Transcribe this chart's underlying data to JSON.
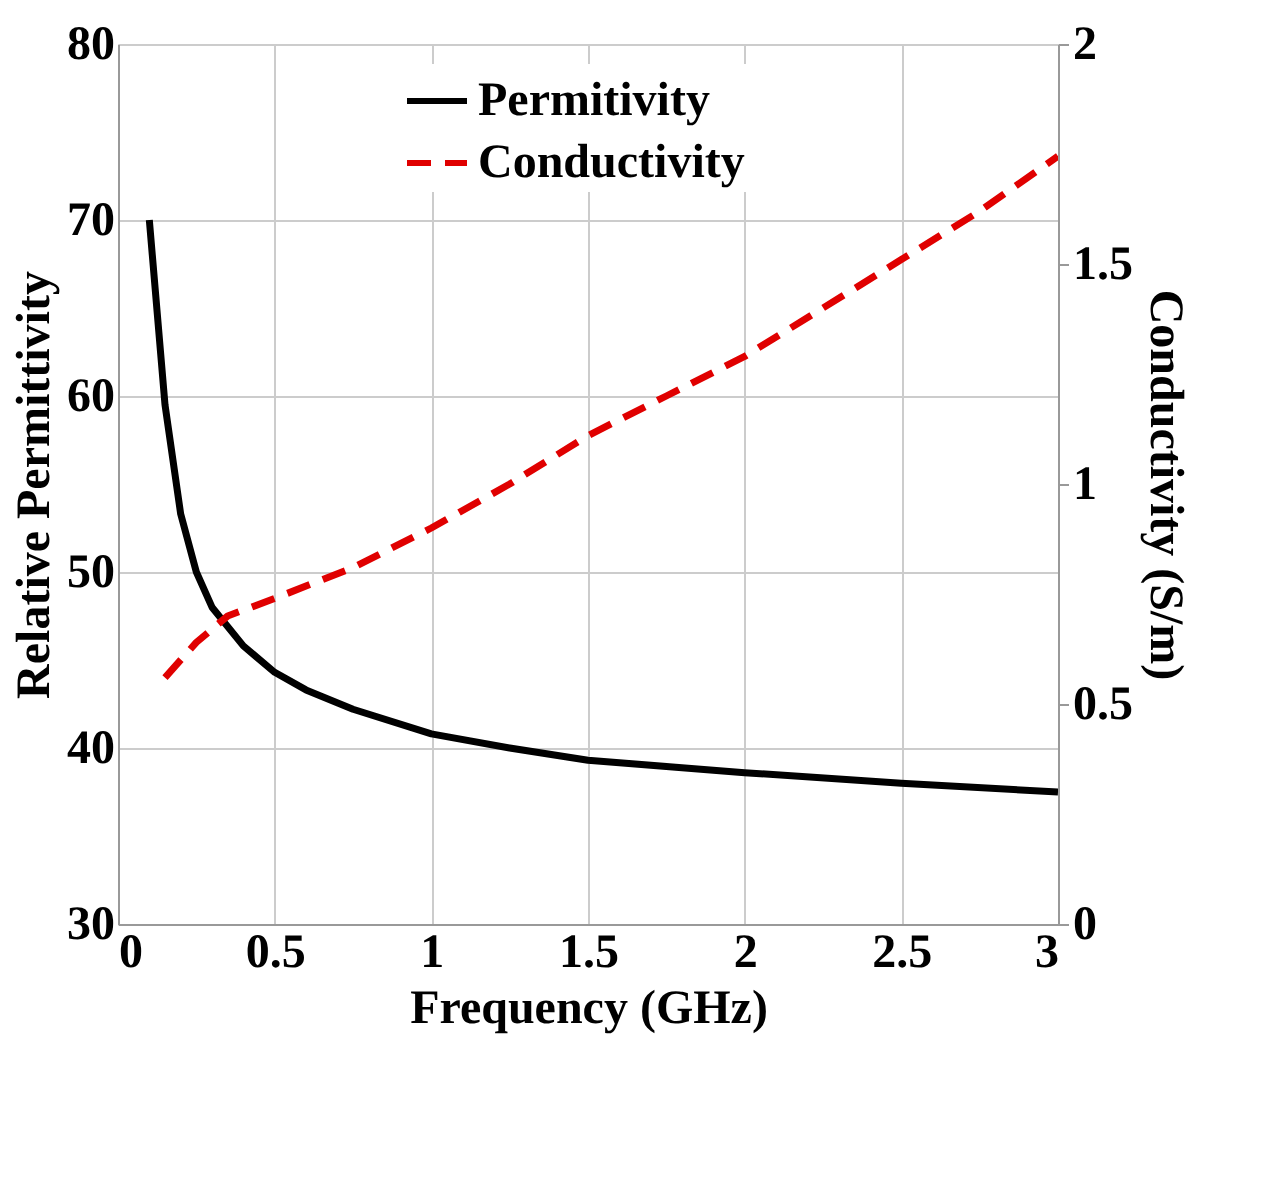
{
  "chart_data": {
    "type": "line",
    "xlabel": "Frequency (GHz)",
    "ylabel": "Relative Permittivity",
    "y2label": "Conductivity (S/m)",
    "xlim": [
      0,
      3
    ],
    "xticks": [
      0,
      0.5,
      1,
      1.5,
      2,
      2.5,
      3
    ],
    "ylim": [
      30,
      80
    ],
    "yticks": [
      30,
      40,
      50,
      60,
      70,
      80
    ],
    "y2lim": [
      0,
      2
    ],
    "y2ticks": [
      0,
      0.5,
      1,
      1.5,
      2
    ],
    "grid": true,
    "legend": "top",
    "marker": "none",
    "series": [
      {
        "name": "Permitivity",
        "color": "#000000",
        "line_style": "solid",
        "x": [
          0.1,
          0.15,
          0.2,
          0.25,
          0.3,
          0.4,
          0.5,
          0.6,
          0.75,
          1,
          1.25,
          1.5,
          2,
          2.5,
          3
        ],
        "values": [
          70,
          59.5,
          53.3,
          50,
          48,
          45.8,
          44.3,
          43.3,
          42.2,
          40.8,
          40,
          39.3,
          38.6,
          38,
          37.5
        ]
      },
      {
        "name": "Conductivity",
        "color": "#e00000",
        "line_style": "dashed",
        "axis": "y2",
        "x": [
          0.15,
          0.25,
          0.35,
          0.5,
          0.75,
          1,
          1.25,
          1.5,
          1.75,
          2,
          2.25,
          2.5,
          2.75,
          3
        ],
        "values": [
          0.56,
          0.64,
          0.7,
          0.74,
          0.81,
          0.9,
          1.0,
          1.11,
          1.2,
          1.29,
          1.4,
          1.51,
          1.62,
          1.745
        ]
      }
    ]
  }
}
